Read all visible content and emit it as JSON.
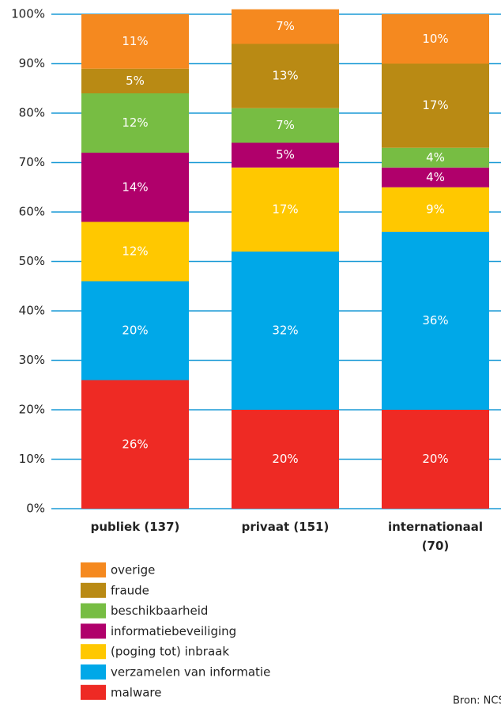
{
  "chart_data": {
    "type": "stacked-bar",
    "categories": [
      "publiek (137)",
      "privaat (151)",
      "internationaal (70)"
    ],
    "series": [
      {
        "name": "malware",
        "color": "#ee2a24",
        "values": [
          26,
          20,
          20
        ],
        "value_labels": [
          "26%",
          "20%",
          "20%"
        ]
      },
      {
        "name": "verzamelen van informatie",
        "color": "#00a8e8",
        "values": [
          20,
          32,
          36
        ],
        "value_labels": [
          "20%",
          "32%",
          "36%"
        ]
      },
      {
        "name": "(poging tot) inbraak",
        "color": "#ffc800",
        "values": [
          12,
          17,
          9
        ],
        "value_labels": [
          "12%",
          "17%",
          "9%"
        ]
      },
      {
        "name": "informatiebeveiliging",
        "color": "#b0006b",
        "values": [
          14,
          5,
          4
        ],
        "value_labels": [
          "14%",
          "5%",
          "4%"
        ]
      },
      {
        "name": "beschikbaarheid",
        "color": "#77bd43",
        "values": [
          12,
          7,
          4
        ],
        "value_labels": [
          "12%",
          "7%",
          "4%"
        ]
      },
      {
        "name": "fraude",
        "color": "#b98a14",
        "values": [
          5,
          13,
          17
        ],
        "value_labels": [
          "5%",
          "13%",
          "17%"
        ]
      },
      {
        "name": "overige",
        "color": "#f5891f",
        "values": [
          11,
          7,
          10
        ],
        "value_labels": [
          "11%",
          "7%",
          "10%"
        ]
      }
    ],
    "ylim": [
      0,
      100
    ],
    "yticks": [
      {
        "value": 0,
        "label": "0%"
      },
      {
        "value": 10,
        "label": "10%"
      },
      {
        "value": 20,
        "label": "20%"
      },
      {
        "value": 30,
        "label": "30%"
      },
      {
        "value": 40,
        "label": "40%"
      },
      {
        "value": 50,
        "label": "50%"
      },
      {
        "value": 60,
        "label": "60%"
      },
      {
        "value": 70,
        "label": "70%"
      },
      {
        "value": 80,
        "label": "80%"
      },
      {
        "value": 90,
        "label": "90%"
      },
      {
        "value": 100,
        "label": "100%"
      }
    ],
    "grid": true,
    "grid_color": "#1a9ad6",
    "source": "Bron: NCSC"
  }
}
